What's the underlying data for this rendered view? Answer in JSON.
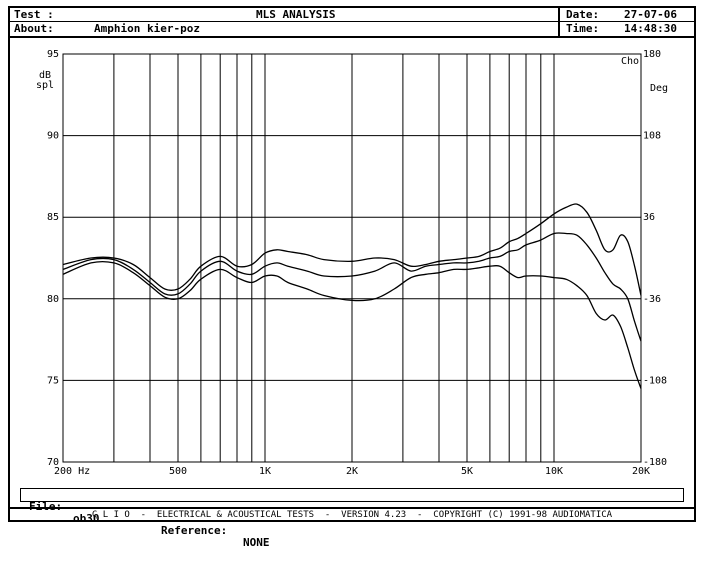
{
  "header": {
    "test_label": "Test :",
    "about_label": "About:",
    "about_value": "Amphion kier-poz",
    "title": "MLS ANALYSIS",
    "date_label": "Date:",
    "date_value": "27-07-06",
    "time_label": "Time:",
    "time_value": "14:48:30"
  },
  "footer": {
    "file_label": "File:",
    "file_value": "ob30",
    "reference_label": "Reference:",
    "reference_value": "NONE",
    "copyright_line": "C L I O  -  ELECTRICAL & ACOUSTICAL TESTS  -  VERSION 4.23  -  COPYRIGHT (C) 1991-98 AUDIOMATICA"
  },
  "chart_data": {
    "type": "line",
    "x_scale": "log",
    "xlim": [
      200,
      20000
    ],
    "ylim": [
      70,
      95
    ],
    "y2lim": [
      -180,
      180
    ],
    "ylabel": "dB spl",
    "y2label": "Deg",
    "corner_label": "Cho",
    "x_tick_labels": [
      {
        "x": 200,
        "label": "200  Hz"
      },
      {
        "x": 500,
        "label": "500"
      },
      {
        "x": 1000,
        "label": "1K"
      },
      {
        "x": 2000,
        "label": "2K"
      },
      {
        "x": 5000,
        "label": "5K"
      },
      {
        "x": 10000,
        "label": "10K"
      },
      {
        "x": 20000,
        "label": "20K"
      }
    ],
    "y_ticks": [
      70,
      75,
      80,
      85,
      90,
      95
    ],
    "y2_ticks": [
      -180,
      -108,
      -36,
      36,
      108,
      180
    ],
    "grid": true,
    "series": [
      {
        "x": [
          200,
          250,
          300,
          350,
          400,
          450,
          500,
          550,
          600,
          700,
          800,
          900,
          1000,
          1100,
          1200,
          1400,
          1600,
          2000,
          2400,
          2800,
          3200,
          3600,
          4000,
          4500,
          5000,
          5500,
          6000,
          6500,
          7000,
          7500,
          8000,
          9000,
          10000,
          11000,
          12000,
          13000,
          14000,
          15000,
          16000,
          17000,
          18000,
          19000,
          20000
        ],
        "y": [
          82.1,
          82.5,
          82.5,
          82.1,
          81.3,
          80.6,
          80.6,
          81.2,
          82.0,
          82.6,
          82.0,
          82.1,
          82.8,
          83.0,
          82.9,
          82.7,
          82.4,
          82.3,
          82.5,
          82.4,
          82.0,
          82.1,
          82.3,
          82.4,
          82.5,
          82.6,
          82.9,
          83.1,
          83.5,
          83.7,
          84.0,
          84.6,
          85.2,
          85.6,
          85.8,
          85.3,
          84.2,
          83.0,
          83.0,
          83.9,
          83.5,
          82.0,
          80.2
        ]
      },
      {
        "x": [
          200,
          250,
          300,
          350,
          400,
          450,
          500,
          550,
          600,
          700,
          800,
          900,
          1000,
          1100,
          1200,
          1400,
          1600,
          2000,
          2400,
          2800,
          3200,
          3600,
          4000,
          4500,
          5000,
          5500,
          6000,
          6500,
          7000,
          7500,
          8000,
          9000,
          10000,
          11000,
          12000,
          13000,
          14000,
          15000,
          16000,
          17000,
          18000,
          19000,
          20000
        ],
        "y": [
          81.8,
          82.4,
          82.4,
          81.8,
          81.0,
          80.3,
          80.3,
          80.9,
          81.7,
          82.3,
          81.7,
          81.5,
          82.0,
          82.2,
          82.0,
          81.7,
          81.4,
          81.4,
          81.7,
          82.2,
          81.7,
          82.0,
          82.1,
          82.2,
          82.2,
          82.3,
          82.5,
          82.6,
          82.9,
          83.0,
          83.3,
          83.6,
          84.0,
          84.0,
          83.9,
          83.3,
          82.5,
          81.6,
          80.9,
          80.6,
          80.0,
          78.6,
          77.4
        ]
      },
      {
        "x": [
          200,
          250,
          300,
          350,
          400,
          450,
          500,
          550,
          600,
          700,
          800,
          900,
          1000,
          1100,
          1200,
          1400,
          1600,
          2000,
          2400,
          2800,
          3200,
          3600,
          4000,
          4500,
          5000,
          5500,
          6000,
          6500,
          7000,
          7500,
          8000,
          9000,
          10000,
          11000,
          12000,
          13000,
          14000,
          15000,
          16000,
          17000,
          18000,
          19000,
          20000
        ],
        "y": [
          81.5,
          82.2,
          82.2,
          81.6,
          80.8,
          80.1,
          80.0,
          80.5,
          81.2,
          81.8,
          81.3,
          81.0,
          81.4,
          81.4,
          81.0,
          80.6,
          80.2,
          79.9,
          80.0,
          80.6,
          81.3,
          81.5,
          81.6,
          81.8,
          81.8,
          81.9,
          82.0,
          82.0,
          81.6,
          81.3,
          81.4,
          81.4,
          81.3,
          81.2,
          80.8,
          80.2,
          79.1,
          78.7,
          79.0,
          78.3,
          77.0,
          75.6,
          74.5
        ]
      }
    ]
  }
}
